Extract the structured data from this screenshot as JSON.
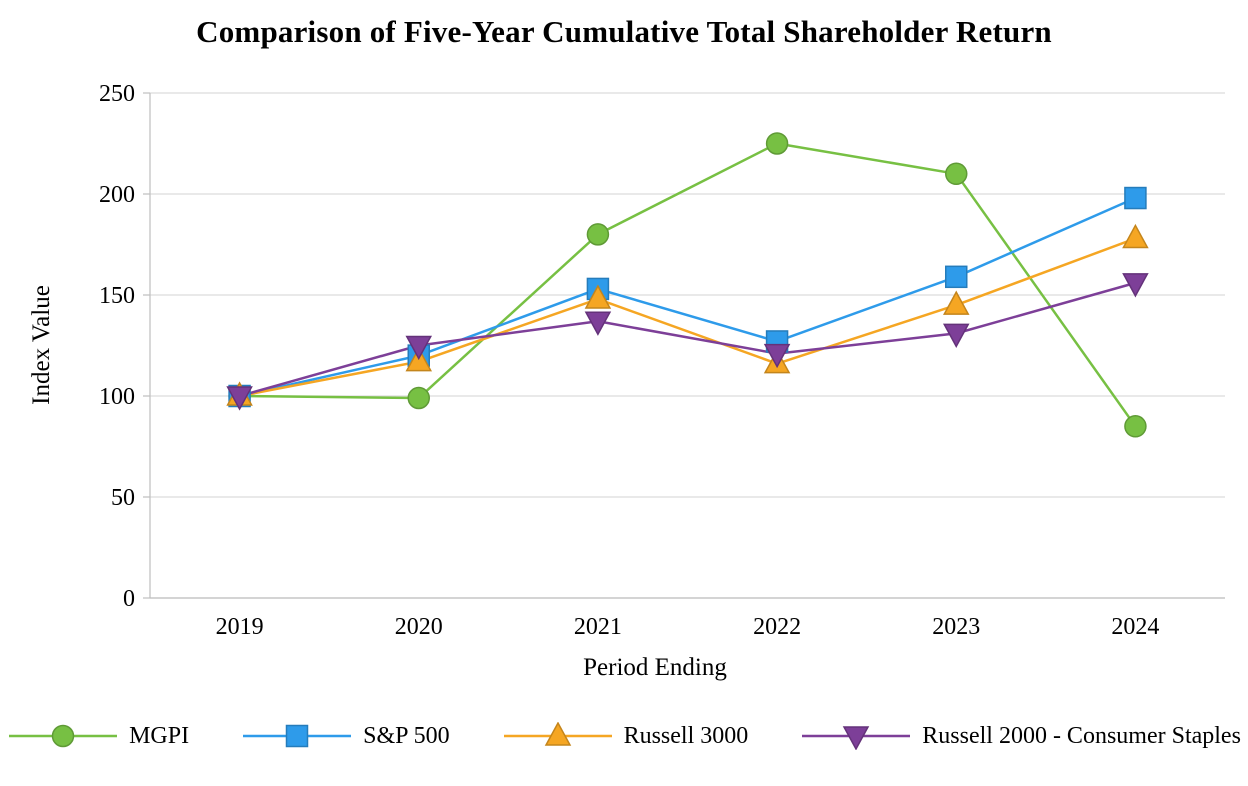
{
  "chart_data": {
    "type": "line",
    "title": "Comparison of Five-Year Cumulative Total Shareholder Return",
    "xlabel": "Period Ending",
    "ylabel": "Index Value",
    "categories": [
      "2019",
      "2020",
      "2021",
      "2022",
      "2023",
      "2024"
    ],
    "ylim": [
      0,
      250
    ],
    "yticks": [
      0,
      50,
      100,
      150,
      200,
      250
    ],
    "grid": true,
    "legend_position": "bottom",
    "colors": {
      "grid": "#DCDCDC",
      "axis": "#BFBFBF",
      "text": "#000000"
    },
    "series": [
      {
        "name": "MGPI",
        "color": "#77C043",
        "marker": "circle",
        "values": [
          100,
          99,
          180,
          225,
          210,
          85
        ]
      },
      {
        "name": "S&P 500",
        "color": "#2E9BEA",
        "marker": "square",
        "values": [
          100,
          120,
          153,
          127,
          159,
          198
        ]
      },
      {
        "name": "Russell 3000",
        "color": "#F5A623",
        "marker": "triangle-up",
        "values": [
          100,
          117,
          148,
          116,
          145,
          178
        ]
      },
      {
        "name": "Russell 2000 - Consumer Staples",
        "color": "#7D3F98",
        "marker": "triangle-down",
        "values": [
          100,
          125,
          137,
          121,
          131,
          156
        ]
      }
    ]
  }
}
